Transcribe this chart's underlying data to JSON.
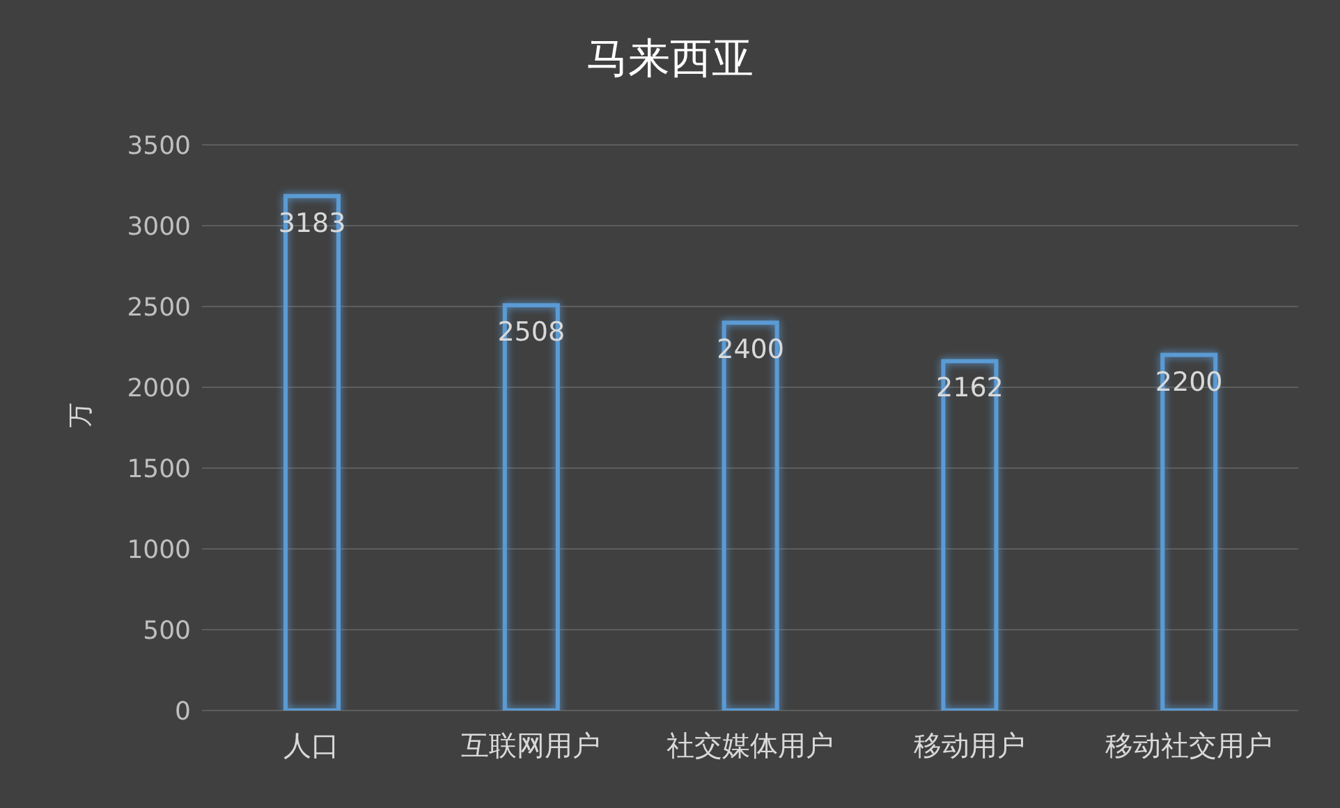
{
  "chart_data": {
    "type": "bar",
    "title": "马来西亚",
    "ylabel": "万",
    "categories": [
      "人口",
      "互联网用户",
      "社交媒体用户",
      "移动用户",
      "移动社交用户"
    ],
    "values": [
      3183,
      2508,
      2400,
      2162,
      2200
    ],
    "color": "#5b9bd5",
    "ylim": [
      0,
      3500
    ],
    "yticks": [
      0,
      500,
      1000,
      1500,
      2000,
      2500,
      3000,
      3500
    ],
    "grid": "y",
    "data_labels": true
  }
}
